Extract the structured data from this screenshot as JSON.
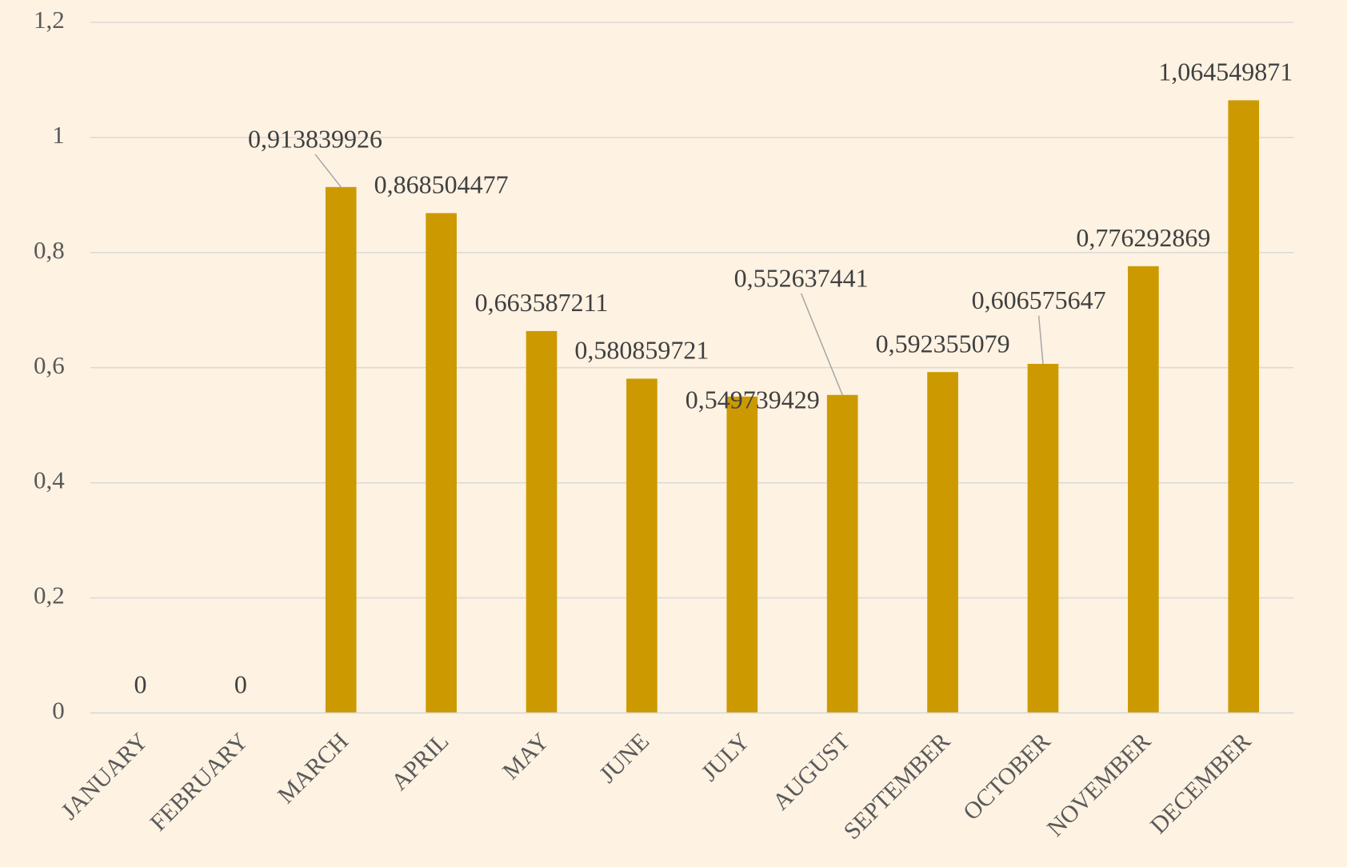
{
  "chart_data": {
    "type": "bar",
    "categories": [
      "JANUARY",
      "FEBRUARY",
      "MARCH",
      "APRIL",
      "MAY",
      "JUNE",
      "JULY",
      "AUGUST",
      "SEPTEMBER",
      "OCTOBER",
      "NOVEMBER",
      "DECEMBER"
    ],
    "values": [
      0,
      0,
      0.913839926,
      0.868504477,
      0.663587211,
      0.580859721,
      0.549739429,
      0.552637441,
      0.592355079,
      0.606575647,
      0.776292869,
      1.064549871
    ],
    "value_labels": [
      "0",
      "0",
      "0,913839926",
      "0,868504477",
      "0,663587211",
      "0,580859721",
      "0,549739429",
      "0,552637441",
      "0,592355079",
      "0,606575647",
      "0,776292869",
      "1,064549871"
    ],
    "color": "#cc9a00",
    "ylim": [
      0,
      1.2
    ],
    "yticks": [
      0,
      {
        "value": 0.2,
        "label": "0,2"
      },
      {
        "value": 0.4,
        "label": "0,4"
      },
      {
        "value": 0.6,
        "label": "0,6"
      },
      {
        "value": 0.8,
        "label": "0,8"
      },
      1,
      {
        "value": 1.2,
        "label": "1,2"
      }
    ],
    "grid": true
  }
}
